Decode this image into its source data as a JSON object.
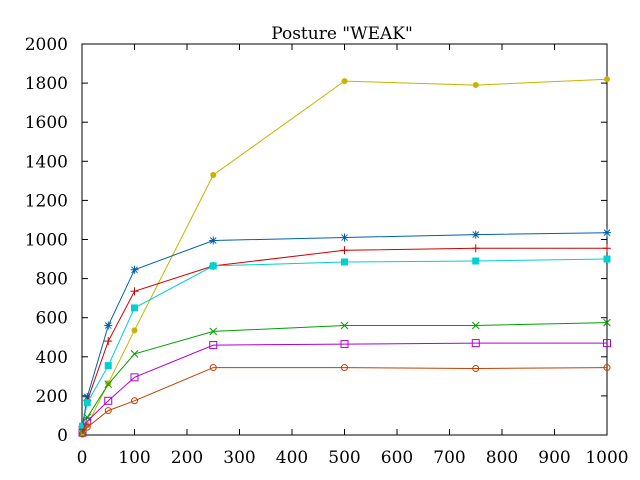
{
  "chart_data": {
    "type": "line",
    "title": "Posture \"WEAK\"",
    "xlabel": "",
    "ylabel": "",
    "xlim": [
      0,
      1000
    ],
    "ylim": [
      0,
      2000
    ],
    "x_ticks": [
      0,
      100,
      200,
      300,
      400,
      500,
      600,
      700,
      800,
      900,
      1000
    ],
    "y_ticks": [
      0,
      200,
      400,
      600,
      800,
      1000,
      1200,
      1400,
      1600,
      1800,
      2000
    ],
    "grid": false,
    "legend": "none",
    "series": [
      {
        "name": "series-olive",
        "color": "#c8b400",
        "marker": "filled-circle",
        "x": [
          1,
          10,
          50,
          100,
          250,
          500,
          750,
          1000
        ],
        "y": [
          10,
          50,
          265,
          535,
          1330,
          1810,
          1790,
          1820
        ]
      },
      {
        "name": "series-blue",
        "color": "#0060ad",
        "marker": "star",
        "x": [
          1,
          10,
          50,
          100,
          250,
          500,
          750,
          1000
        ],
        "y": [
          45,
          195,
          560,
          845,
          995,
          1010,
          1025,
          1035
        ]
      },
      {
        "name": "series-red",
        "color": "#d00000",
        "marker": "plus",
        "x": [
          1,
          10,
          50,
          100,
          250,
          500,
          750,
          1000
        ],
        "y": [
          40,
          175,
          480,
          735,
          865,
          945,
          955,
          955
        ]
      },
      {
        "name": "series-cyan",
        "color": "#00d0d0",
        "marker": "filled-square",
        "x": [
          1,
          10,
          50,
          100,
          250,
          500,
          750,
          1000
        ],
        "y": [
          45,
          165,
          355,
          650,
          865,
          885,
          890,
          900
        ]
      },
      {
        "name": "series-green",
        "color": "#00a000",
        "marker": "cross",
        "x": [
          1,
          10,
          50,
          100,
          250,
          500,
          750,
          1000
        ],
        "y": [
          15,
          90,
          260,
          415,
          530,
          560,
          560,
          575
        ]
      },
      {
        "name": "series-purple",
        "color": "#b000d0",
        "marker": "open-square",
        "x": [
          1,
          10,
          50,
          100,
          250,
          500,
          750,
          1000
        ],
        "y": [
          12,
          70,
          175,
          295,
          460,
          465,
          470,
          470
        ]
      },
      {
        "name": "series-orange",
        "color": "#c04000",
        "marker": "open-circle",
        "x": [
          1,
          10,
          50,
          100,
          250,
          500,
          750,
          1000
        ],
        "y": [
          5,
          40,
          125,
          175,
          345,
          345,
          340,
          345
        ]
      }
    ]
  }
}
